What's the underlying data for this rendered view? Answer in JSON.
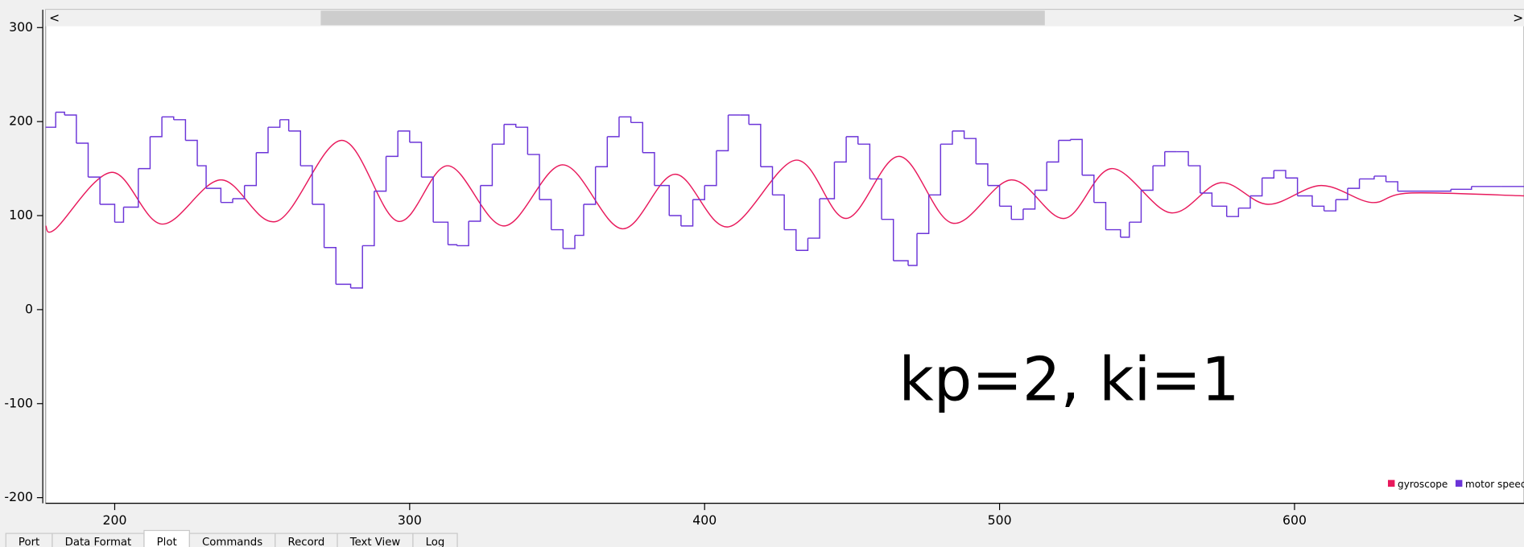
{
  "chart_data": {
    "type": "line",
    "annotation": "kp=2, ki=1",
    "xlim": [
      176.6,
      677.8
    ],
    "ylim": [
      -206,
      319
    ],
    "xticks": [
      200,
      300,
      400,
      500,
      600
    ],
    "yticks": [
      300,
      200,
      100,
      0,
      -100,
      -200
    ],
    "legend": "lower right",
    "series": [
      {
        "name": "gyroscope",
        "color": "#e8195c",
        "smooth": true,
        "x": [
          176.6,
          180,
          199,
          216,
          236,
          255,
          277,
          296,
          313,
          332,
          352,
          372,
          390,
          408,
          431,
          448,
          466,
          484,
          504,
          522,
          538,
          558,
          575,
          591,
          609,
          626,
          639,
          678
        ],
        "values": [
          89,
          86,
          146,
          91,
          138,
          94,
          180,
          94,
          153,
          89,
          154,
          86,
          144,
          88,
          159,
          97,
          163,
          92,
          138,
          97,
          150,
          103,
          135,
          112,
          132,
          114,
          124,
          121
        ]
      },
      {
        "name": "motor speed",
        "color": "#6b34d8",
        "step": true,
        "x": [
          176.6,
          180,
          183,
          187,
          191,
          195,
          200,
          203,
          208,
          212,
          216,
          220,
          224,
          228,
          231,
          236,
          240,
          244,
          248,
          252,
          256,
          259,
          263,
          267,
          271,
          275,
          280,
          284,
          288,
          292,
          296,
          300,
          304,
          308,
          313,
          316,
          320,
          324,
          328,
          332,
          336,
          340,
          344,
          348,
          352,
          356,
          359,
          363,
          367,
          371,
          375,
          379,
          383,
          388,
          392,
          396,
          400,
          404,
          408,
          412,
          415,
          419,
          423,
          427,
          431,
          435,
          439,
          444,
          448,
          452,
          456,
          460,
          464,
          469,
          472,
          476,
          480,
          484,
          488,
          492,
          496,
          500,
          504,
          508,
          512,
          516,
          520,
          524,
          528,
          532,
          536,
          541,
          544,
          548,
          552,
          556,
          560,
          564,
          568,
          572,
          577,
          581,
          585,
          589,
          593,
          597,
          601,
          606,
          610,
          614,
          618,
          622,
          627,
          631,
          635,
          643,
          653,
          660,
          670
        ],
        "values": [
          194,
          210,
          207,
          177,
          141,
          112,
          93,
          109,
          150,
          184,
          205,
          202,
          180,
          153,
          129,
          114,
          118,
          132,
          167,
          194,
          202,
          190,
          153,
          112,
          66,
          27,
          23,
          68,
          126,
          163,
          190,
          178,
          141,
          93,
          69,
          68,
          94,
          132,
          176,
          197,
          194,
          165,
          117,
          85,
          65,
          79,
          112,
          152,
          184,
          205,
          199,
          167,
          132,
          100,
          89,
          117,
          132,
          169,
          207,
          207,
          197,
          152,
          122,
          85,
          63,
          76,
          118,
          157,
          184,
          176,
          139,
          96,
          52,
          47,
          81,
          122,
          176,
          190,
          182,
          155,
          132,
          110,
          96,
          107,
          127,
          157,
          180,
          181,
          143,
          114,
          85,
          77,
          93,
          127,
          153,
          168,
          168,
          153,
          124,
          110,
          99,
          108,
          121,
          140,
          148,
          140,
          121,
          110,
          105,
          117,
          129,
          139,
          142,
          136,
          126,
          126,
          128,
          131,
          131
        ]
      }
    ]
  },
  "ui": {
    "scroll_left": "<",
    "scroll_right": ">",
    "tabs": [
      "Port",
      "Data Format",
      "Plot",
      "Commands",
      "Record",
      "Text View",
      "Log"
    ]
  }
}
